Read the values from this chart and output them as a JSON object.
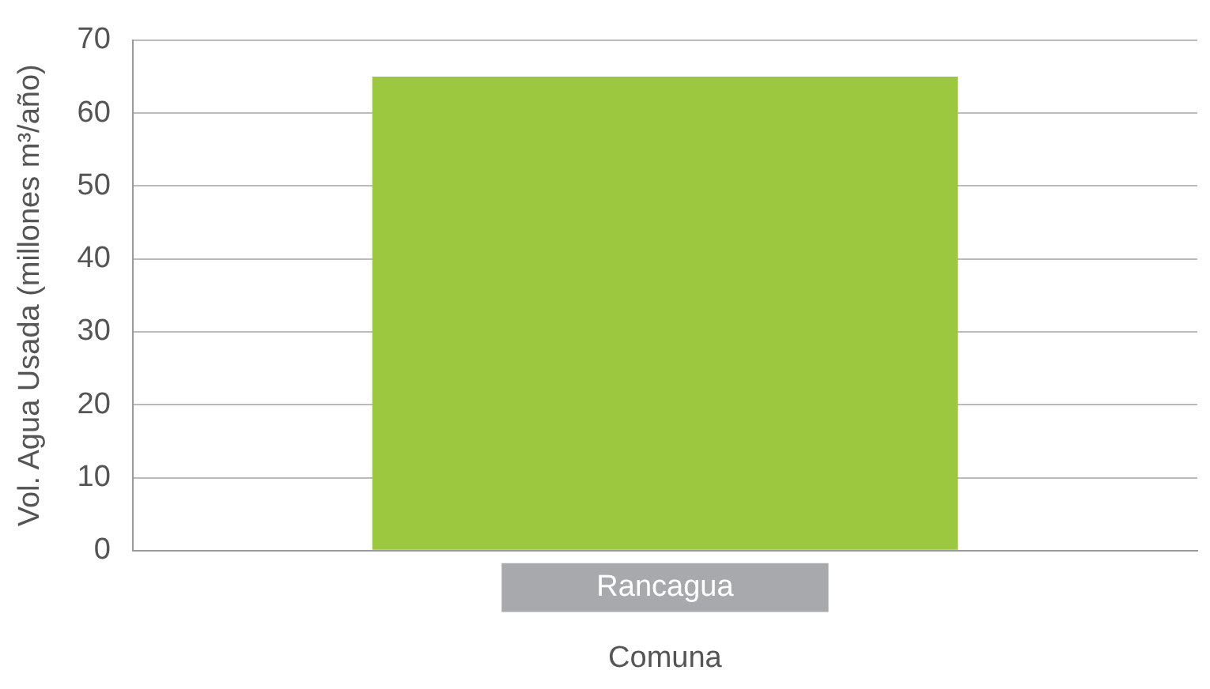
{
  "chart_data": {
    "type": "bar",
    "categories": [
      "Rancagua"
    ],
    "values": [
      65
    ],
    "color": "#9bc83e",
    "xlabel": "Comuna",
    "ylabel": "Vol. Agua Usada (millones m³/año)",
    "ylim": [
      0,
      70
    ],
    "yticks": [
      0,
      10,
      20,
      30,
      40,
      50,
      60,
      70
    ],
    "grid": "y",
    "legend": false
  }
}
